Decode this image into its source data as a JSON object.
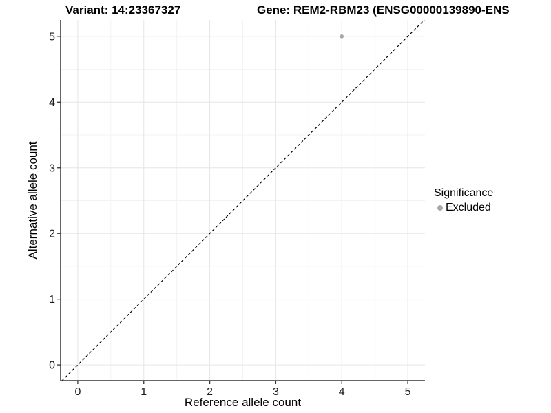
{
  "header": {
    "variant_title": "Variant: 14:23367327",
    "gene_title": "Gene: REM2-RBM23 (ENSG00000139890-ENS"
  },
  "chart_data": {
    "type": "scatter",
    "xlabel": "Reference allele count",
    "ylabel": "Alternative allele count",
    "xticks": [
      0,
      1,
      2,
      3,
      4,
      5
    ],
    "yticks": [
      0,
      1,
      2,
      3,
      4,
      5
    ],
    "xlim": [
      -0.26,
      5.26
    ],
    "ylim": [
      -0.24,
      5.25
    ],
    "grid": "major and minor gridlines on, white background",
    "points": [
      {
        "x": 4,
        "y": 5,
        "significance": "Excluded"
      }
    ],
    "identity_line": {
      "style": "dashed",
      "slope": 1,
      "intercept": 0,
      "color": "#000000"
    },
    "legend": {
      "position": "right",
      "title": "Significance",
      "entries": [
        {
          "label": "Excluded",
          "color": "#a8a8a8"
        }
      ]
    },
    "colors": {
      "grid_major": "#e6e6e6",
      "grid_minor": "#f3f3f3",
      "axis_line": "#333333",
      "tick_mark": "#333333",
      "tick_label": "#1a1a1a",
      "axis_title": "#000000",
      "point": "#a8a8a8"
    }
  }
}
